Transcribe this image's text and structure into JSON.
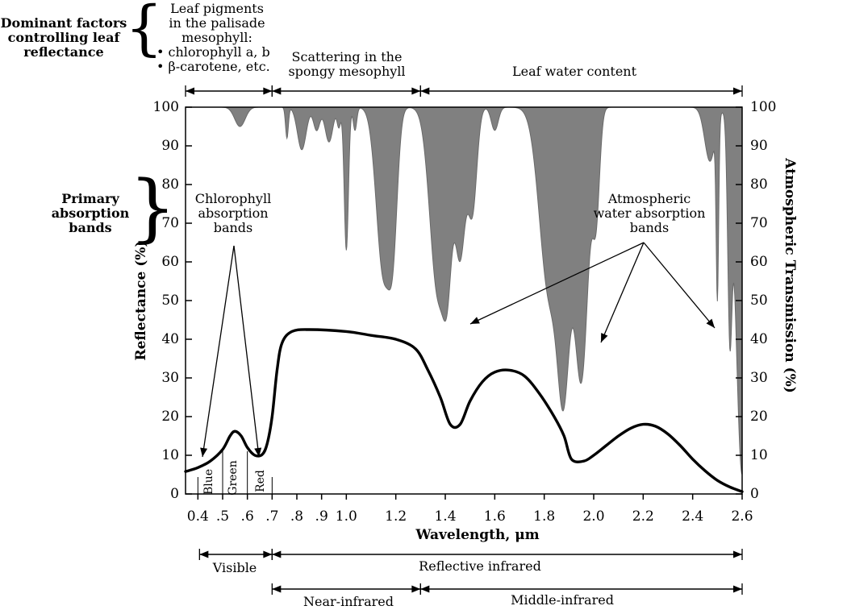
{
  "header": {
    "dominant_label": [
      "Dominant factors",
      "controlling leaf",
      "reflectance"
    ],
    "pigments_label": [
      "Leaf pigments",
      "in the palisade",
      "mesophyll:",
      "• chlorophyll a, b",
      "• β-carotene,  etc."
    ],
    "scattering_label": [
      "Scattering in the",
      "spongy mesophyll"
    ],
    "water_label": "Leaf water content"
  },
  "side": {
    "primary_absorption_label": [
      "Primary",
      "absorption",
      "bands"
    ]
  },
  "annotations": {
    "chlorophyll_bands": [
      "Chlorophyll",
      "absorption",
      "bands"
    ],
    "atmospheric_bands": [
      "Atmospheric",
      "water absorption",
      "bands"
    ],
    "blue": "Blue",
    "green": "Green",
    "red": "Red"
  },
  "regions": {
    "visible": "Visible",
    "reflective_ir": "Reflective infrared",
    "near_ir": "Near-infrared",
    "middle_ir": "Middle-infrared"
  },
  "chart_data": {
    "type": "line",
    "title": "",
    "xlabel": "Wavelength, μm",
    "ylabel": "Reflectance (%)",
    "y2label": "Atmospheric Transmission (%)",
    "xlim": [
      0.35,
      2.6
    ],
    "ylim": [
      0,
      100
    ],
    "y2lim": [
      0,
      100
    ],
    "x_ticks": [
      {
        "v": 0.4,
        "l": "0.4"
      },
      {
        "v": 0.5,
        "l": ".5"
      },
      {
        "v": 0.6,
        "l": ".6"
      },
      {
        "v": 0.7,
        "l": ".7"
      },
      {
        "v": 0.8,
        "l": ".8"
      },
      {
        "v": 0.9,
        "l": ".9"
      },
      {
        "v": 1.0,
        "l": "1.0"
      },
      {
        "v": 1.2,
        "l": "1.2"
      },
      {
        "v": 1.4,
        "l": "1.4"
      },
      {
        "v": 1.6,
        "l": "1.6"
      },
      {
        "v": 1.8,
        "l": "1.8"
      },
      {
        "v": 2.0,
        "l": "2.0"
      },
      {
        "v": 2.2,
        "l": "2.2"
      },
      {
        "v": 2.4,
        "l": "2.4"
      },
      {
        "v": 2.6,
        "l": "2.6"
      }
    ],
    "y_ticks": [
      0,
      10,
      20,
      30,
      40,
      50,
      60,
      70,
      80,
      90,
      100
    ],
    "series": [
      {
        "values_xy": [
          [
            0.35,
            5.8
          ],
          [
            0.4,
            6.8
          ],
          [
            0.45,
            8.5
          ],
          [
            0.5,
            11.5
          ],
          [
            0.53,
            15.0
          ],
          [
            0.55,
            16.2
          ],
          [
            0.575,
            15.0
          ],
          [
            0.6,
            12.0
          ],
          [
            0.63,
            10.0
          ],
          [
            0.66,
            10.2
          ],
          [
            0.68,
            13.0
          ],
          [
            0.7,
            20.0
          ],
          [
            0.72,
            32.0
          ],
          [
            0.74,
            39.0
          ],
          [
            0.78,
            42.0
          ],
          [
            0.85,
            42.5
          ],
          [
            1.0,
            42.0
          ],
          [
            1.1,
            41.0
          ],
          [
            1.2,
            40.0
          ],
          [
            1.28,
            37.5
          ],
          [
            1.33,
            32.0
          ],
          [
            1.38,
            25.0
          ],
          [
            1.42,
            18.0
          ],
          [
            1.46,
            18.0
          ],
          [
            1.5,
            24.0
          ],
          [
            1.55,
            29.0
          ],
          [
            1.6,
            31.5
          ],
          [
            1.66,
            32.0
          ],
          [
            1.72,
            30.5
          ],
          [
            1.78,
            26.0
          ],
          [
            1.84,
            20.0
          ],
          [
            1.88,
            15.0
          ],
          [
            1.91,
            9.0
          ],
          [
            1.96,
            8.5
          ],
          [
            2.0,
            10.0
          ],
          [
            2.05,
            12.5
          ],
          [
            2.1,
            15.0
          ],
          [
            2.15,
            17.0
          ],
          [
            2.2,
            18.0
          ],
          [
            2.25,
            17.5
          ],
          [
            2.3,
            15.5
          ],
          [
            2.35,
            12.5
          ],
          [
            2.4,
            9.0
          ],
          [
            2.45,
            6.0
          ],
          [
            2.5,
            3.5
          ],
          [
            2.55,
            1.8
          ],
          [
            2.6,
            0.6
          ]
        ]
      }
    ],
    "transmission_dips": [
      {
        "x": 0.57,
        "w": 0.03,
        "depth": 5
      },
      {
        "x": 0.76,
        "w": 0.008,
        "depth": 8
      },
      {
        "x": 0.82,
        "w": 0.025,
        "depth": 11
      },
      {
        "x": 0.88,
        "w": 0.018,
        "depth": 6
      },
      {
        "x": 0.93,
        "w": 0.022,
        "depth": 9
      },
      {
        "x": 0.97,
        "w": 0.01,
        "depth": 5
      },
      {
        "x": 1.0,
        "w": 0.012,
        "depth": 37
      },
      {
        "x": 1.035,
        "w": 0.01,
        "depth": 6
      },
      {
        "x": 1.15,
        "w": 0.04,
        "depth": 43
      },
      {
        "x": 1.19,
        "w": 0.025,
        "depth": 26
      },
      {
        "x": 1.37,
        "w": 0.045,
        "depth": 48
      },
      {
        "x": 1.41,
        "w": 0.025,
        "depth": 28
      },
      {
        "x": 1.46,
        "w": 0.03,
        "depth": 38
      },
      {
        "x": 1.51,
        "w": 0.025,
        "depth": 26
      },
      {
        "x": 1.6,
        "w": 0.02,
        "depth": 6
      },
      {
        "x": 1.82,
        "w": 0.055,
        "depth": 48
      },
      {
        "x": 1.88,
        "w": 0.035,
        "depth": 60
      },
      {
        "x": 1.95,
        "w": 0.04,
        "depth": 70
      },
      {
        "x": 2.01,
        "w": 0.02,
        "depth": 25
      },
      {
        "x": 2.47,
        "w": 0.03,
        "depth": 14
      },
      {
        "x": 2.5,
        "w": 0.007,
        "depth": 45
      },
      {
        "x": 2.55,
        "w": 0.012,
        "depth": 50
      },
      {
        "x": 2.6,
        "w": 0.035,
        "depth": 95
      }
    ]
  }
}
